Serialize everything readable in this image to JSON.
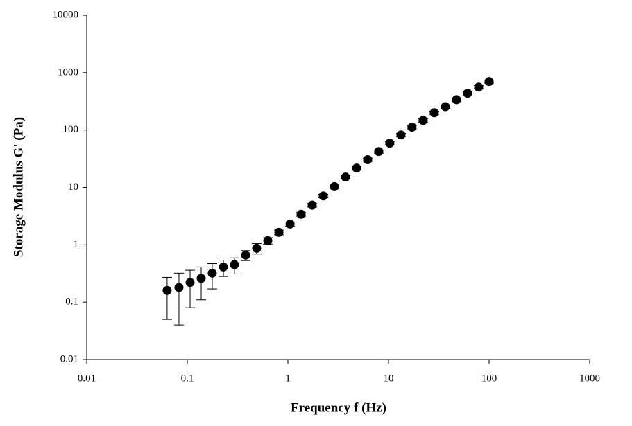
{
  "chart_data": {
    "type": "scatter",
    "xlabel": "Frequency f (Hz)",
    "ylabel": "Storage Modulus G' (Pa)",
    "xscale": "log",
    "yscale": "log",
    "xlim": [
      0.01,
      1000
    ],
    "ylim": [
      0.01,
      10000
    ],
    "xticks": [
      0.01,
      0.1,
      1,
      10,
      100,
      1000
    ],
    "yticks": [
      0.01,
      0.1,
      1,
      10,
      100,
      1000,
      10000
    ],
    "x": [
      0.063,
      0.0826,
      0.1066,
      0.1374,
      0.177,
      0.2285,
      0.294,
      0.38,
      0.489,
      0.631,
      0.814,
      1.05,
      1.352,
      1.743,
      2.25,
      2.9,
      3.74,
      4.82,
      6.21,
      8.0,
      10.3,
      13.3,
      17.1,
      22.1,
      28.5,
      36.8,
      47.4,
      61.1,
      78.8,
      100
    ],
    "series": [
      {
        "color": "#000000",
        "values": [
          0.16,
          0.18,
          0.22,
          0.26,
          0.32,
          0.41,
          0.45,
          0.66,
          0.87,
          1.18,
          1.65,
          2.3,
          3.4,
          4.9,
          7.1,
          10.3,
          15.1,
          21.7,
          30.4,
          42.2,
          59,
          82,
          112,
          147,
          200,
          255,
          338,
          437,
          560,
          700
        ],
        "errors": [
          0.11,
          0.14,
          0.14,
          0.15,
          0.15,
          0.13,
          0.14,
          0.13,
          0.18,
          0.15,
          0.15,
          0.2,
          0.25,
          0.35,
          0.5,
          0.7,
          1,
          1.4,
          2,
          2.8,
          4,
          5.5,
          7.5,
          10,
          13,
          17,
          22,
          28,
          36,
          45
        ]
      }
    ]
  }
}
